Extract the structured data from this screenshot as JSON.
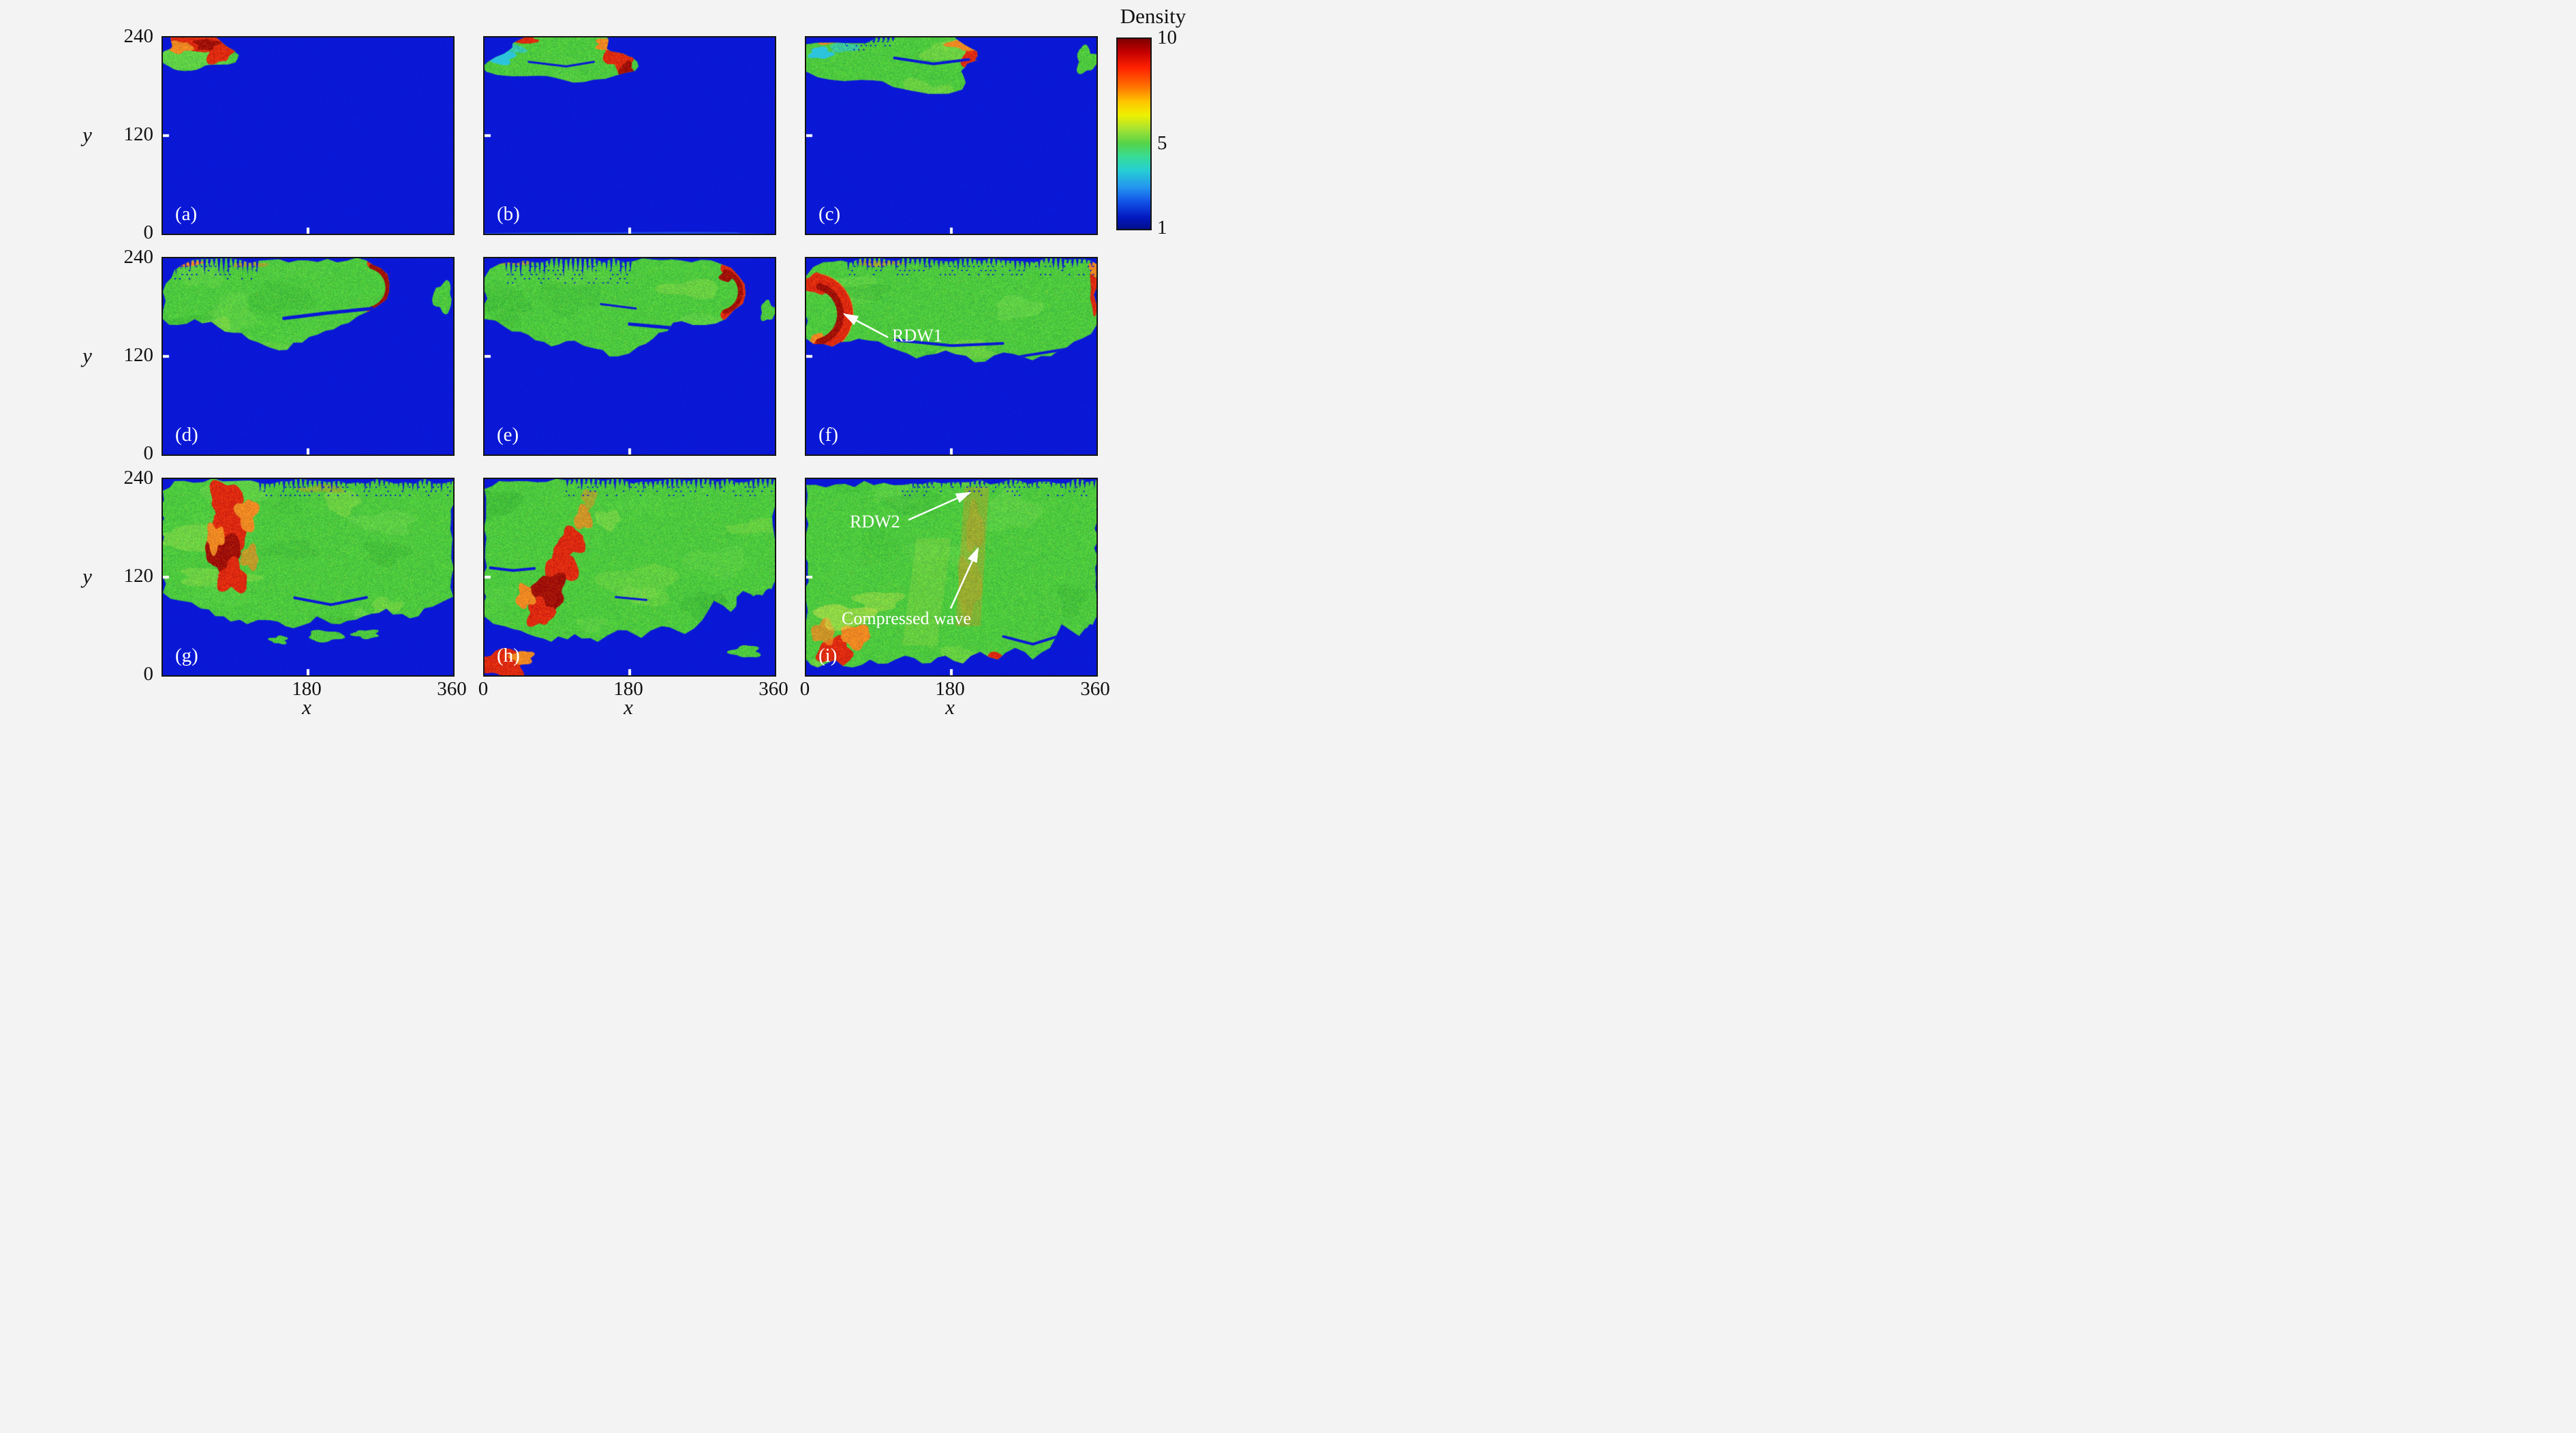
{
  "axes": {
    "x_label": "x",
    "y_label": "y",
    "y_ticks": [
      "240",
      "120",
      "0"
    ],
    "x_ticks_col1": [
      "180",
      "360"
    ],
    "x_ticks": [
      "0",
      "180",
      "360"
    ]
  },
  "colorbar": {
    "title": "Density",
    "ticks": [
      "10",
      "5",
      "1"
    ]
  },
  "colors": {
    "background": "#f3f3f3",
    "field_low_blue": "#0a18d6",
    "reacted_green": "#4cc93e",
    "front_red": "#dc2a10",
    "dark_red": "#a01108",
    "orange": "#ee8822",
    "yellow_green": "#cfe44c",
    "cyan_fringe": "#2cc4dc",
    "annotation_white": "#ffffff"
  },
  "panels": [
    {
      "id": "a",
      "label": "(a)"
    },
    {
      "id": "b",
      "label": "(b)"
    },
    {
      "id": "c",
      "label": "(c)"
    },
    {
      "id": "d",
      "label": "(d)"
    },
    {
      "id": "e",
      "label": "(e)"
    },
    {
      "id": "f",
      "label": "(f)",
      "annotations": [
        {
          "text": "RDW1"
        }
      ]
    },
    {
      "id": "g",
      "label": "(g)"
    },
    {
      "id": "h",
      "label": "(h)"
    },
    {
      "id": "i",
      "label": "(i)",
      "annotations": [
        {
          "text": "RDW2"
        },
        {
          "text": "Compressed wave"
        }
      ]
    }
  ],
  "chart_data": {
    "type": "heatmap",
    "quantity": "Density",
    "colormap": "jet",
    "colorbar": {
      "min": 1,
      "mid": 5,
      "max": 10,
      "ticks": [
        10,
        5,
        1
      ],
      "position": "right"
    },
    "x": {
      "label": "x",
      "range": [
        0,
        360
      ],
      "ticks": [
        0,
        180,
        360
      ]
    },
    "y": {
      "label": "y",
      "range": [
        0,
        240
      ],
      "ticks": [
        0,
        120,
        240
      ]
    },
    "layout": "3x3 grid of snapshots (a)-(i), time sequence of a reactive/detonation wave spreading over a blue (density ~1) quiescent field; reacted region green (~5), wave fronts red (~10)",
    "panels": [
      {
        "label": "(a)",
        "features": "small ignition kernel at top-left corner; red high-density cap (~10) over green reacted pocket (~5); rest of domain uniform blue (~1)"
      },
      {
        "label": "(b)",
        "features": "kernel grown into elongated green pocket along top boundary (x ~ 0-170); red front on its right tip; cyan low-density fringe on left side"
      },
      {
        "label": "(c)",
        "features": "green pocket spans x ~ 0-230 along top; red front at right tip; small detached green spot near x ~ 350, y ~ 215; blue slit inside pocket"
      },
      {
        "label": "(d)",
        "features": "green region covers upper-left half (x ~ 0-300, y ~ 140-240); curved red detonation front near x ~ 300; fine transverse striations along top boundary; detached green spot at right edge"
      },
      {
        "label": "(e)",
        "features": "green region spans nearly full width; curved red front near x ~ 340; striation band along top-left; blue slit cutting into green near y ~ 150"
      },
      {
        "label": "(f)",
        "features": "green fills upper half across full width; strong curved red front (RDW1) at left edge around x ~ 0-50, y ~ 120-200; striations along entire top edge; red streaks at right edge"
      },
      {
        "label": "(g)",
        "features": "green products fill upper three quarters; vertical red-orange high-density plume near x ~ 70-130 from top down to y ~ 110; wavy green/blue interface near y ~ 70; small green islands in blue below"
      },
      {
        "label": "(h)",
        "features": "green fills most of domain; slanted red plume around x ~ 60-130, y ~ 40-170; red pocket at bottom-left corner; blue region shrinking at bottom and bottom-right"
      },
      {
        "label": "(i)",
        "features": "green fills nearly whole domain; second rotating detonation wave RDW2 near top around x ~ 200; oblique orange compressed-wave band below it; red-orange mottled zone at bottom-left; red spot near x ~ 235, y ~ 20; blue pockets at bottom-right"
      }
    ],
    "annotations": [
      {
        "panel": "(f)",
        "text": "RDW1",
        "meaning": "first rotating detonation wave front, arrow points to red arc at left edge"
      },
      {
        "panel": "(i)",
        "text": "RDW2",
        "meaning": "second rotating detonation wave front, arrow points up-right toward top of panel"
      },
      {
        "panel": "(i)",
        "text": "Compressed wave",
        "meaning": "oblique compressed wave band, arrow points up toward mid panel"
      }
    ]
  }
}
